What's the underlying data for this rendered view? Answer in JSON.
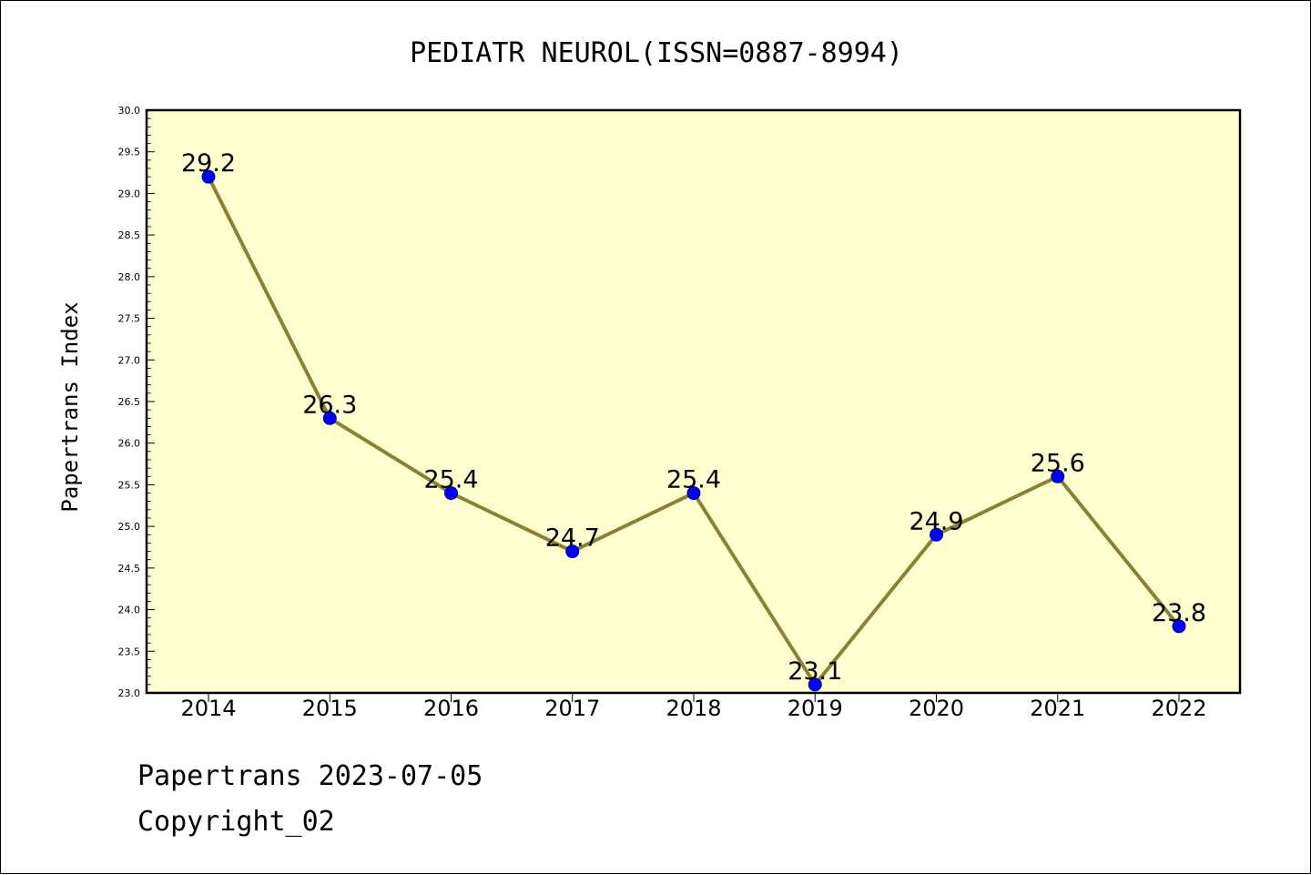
{
  "chart_data": {
    "type": "line",
    "title": "PEDIATR NEUROL(ISSN=0887-8994)",
    "xlabel": "",
    "ylabel": "Papertrans Index",
    "categories": [
      "2014",
      "2015",
      "2016",
      "2017",
      "2018",
      "2019",
      "2020",
      "2021",
      "2022"
    ],
    "series": [
      {
        "values": [
          29.2,
          26.3,
          25.4,
          24.7,
          25.4,
          23.1,
          24.9,
          25.6,
          23.8
        ],
        "data_labels": [
          "29.2",
          "26.3",
          "25.4",
          "24.7",
          "25.4",
          "23.1",
          "24.9",
          "25.6",
          "23.8"
        ]
      }
    ],
    "ylim": [
      23.0,
      30.0
    ],
    "yticks": [
      "23.0",
      "23.5",
      "24.0",
      "24.5",
      "25.0",
      "25.5",
      "26.0",
      "26.5",
      "27.0",
      "27.5",
      "28.0",
      "28.5",
      "29.0",
      "29.5",
      "30.0"
    ],
    "grid": false,
    "legend": "none",
    "colors": {
      "plot_background": "#ffffd0",
      "line": "#8b8036",
      "marker": "#0000ff",
      "marker_edge": "#00008b"
    }
  },
  "footer": {
    "line1": "Papertrans 2023-07-05",
    "line2": "Copyright_02"
  }
}
